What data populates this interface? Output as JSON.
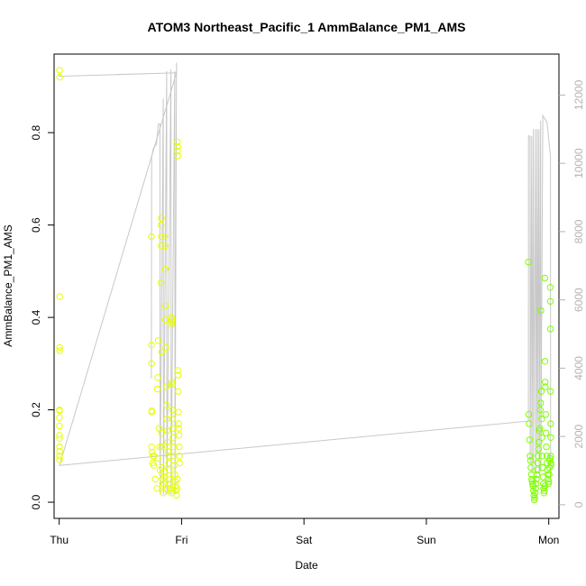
{
  "chart_data": {
    "type": "scatter",
    "title": "ATOM3 Northeast_Pacific_1 AmmBalance_PM1_AMS",
    "xlabel": "Date",
    "ylabel": "AmmBalance_PM1_AMS",
    "x_ticks": [
      "Thu",
      "Fri",
      "Sat",
      "Sun",
      "Mon"
    ],
    "x_tick_values": [
      "2017-10-05",
      "2017-10-06",
      "2017-10-07",
      "2017-10-08",
      "2017-10-09"
    ],
    "xlim": [
      "2017-10-04T23:00",
      "2017-10-09T02:00"
    ],
    "ylim": [
      -0.035,
      0.97
    ],
    "y_ticks": [
      0.0,
      0.2,
      0.4,
      0.6,
      0.8
    ],
    "y2lim": [
      -400,
      13200
    ],
    "y2_ticks": [
      0,
      2000,
      4000,
      6000,
      8000,
      10000,
      12000
    ],
    "series": [
      {
        "type": "scatter",
        "axis": "left",
        "marker": "open-circle",
        "points": [
          [
            "2017-10-05T00:05",
            0.935
          ],
          [
            "2017-10-05T00:06",
            0.92
          ],
          [
            "2017-10-05T00:07",
            0.445
          ],
          [
            "2017-10-05T00:05",
            0.335
          ],
          [
            "2017-10-05T00:06",
            0.328
          ],
          [
            "2017-10-05T00:04",
            0.2
          ],
          [
            "2017-10-05T00:05",
            0.198
          ],
          [
            "2017-10-05T00:03",
            0.183
          ],
          [
            "2017-10-05T00:04",
            0.165
          ],
          [
            "2017-10-05T00:03",
            0.145
          ],
          [
            "2017-10-05T00:05",
            0.138
          ],
          [
            "2017-10-05T00:04",
            0.12
          ],
          [
            "2017-10-05T00:06",
            0.11
          ],
          [
            "2017-10-05T00:03",
            0.1
          ],
          [
            "2017-10-05T00:05",
            0.092
          ],
          [
            "2017-10-05T18:05",
            0.575
          ],
          [
            "2017-10-05T18:06",
            0.34
          ],
          [
            "2017-10-05T18:07",
            0.3
          ],
          [
            "2017-10-05T18:09",
            0.198
          ],
          [
            "2017-10-05T18:10",
            0.195
          ],
          [
            "2017-10-05T18:08",
            0.12
          ],
          [
            "2017-10-05T18:12",
            0.108
          ],
          [
            "2017-10-05T18:24",
            0.1
          ],
          [
            "2017-10-05T18:36",
            0.1
          ],
          [
            "2017-10-05T18:20",
            0.085
          ],
          [
            "2017-10-05T18:31",
            0.08
          ],
          [
            "2017-10-05T18:50",
            0.05
          ],
          [
            "2017-10-05T19:10",
            0.03
          ],
          [
            "2017-10-05T19:20",
            0.095
          ],
          [
            "2017-10-05T19:25",
            0.35
          ],
          [
            "2017-10-05T19:20",
            0.27
          ],
          [
            "2017-10-05T19:15",
            0.245
          ],
          [
            "2017-10-05T19:35",
            0.16
          ],
          [
            "2017-10-05T19:41",
            0.12
          ],
          [
            "2017-10-05T19:46",
            0.07
          ],
          [
            "2017-10-05T20:02",
            0.615
          ],
          [
            "2017-10-05T20:00",
            0.6
          ],
          [
            "2017-10-05T20:01",
            0.575
          ],
          [
            "2017-10-05T20:00",
            0.555
          ],
          [
            "2017-10-05T19:59",
            0.475
          ],
          [
            "2017-10-05T20:05",
            0.325
          ],
          [
            "2017-10-05T20:04",
            0.15
          ],
          [
            "2017-10-05T20:08",
            0.12
          ],
          [
            "2017-10-05T20:13",
            0.075
          ],
          [
            "2017-10-05T20:15",
            0.05
          ],
          [
            "2017-10-05T20:20",
            0.035
          ],
          [
            "2017-10-05T20:25",
            0.02
          ],
          [
            "2017-10-05T20:30",
            0.04
          ],
          [
            "2017-10-05T20:35",
            0.055
          ],
          [
            "2017-10-05T20:40",
            0.065
          ],
          [
            "2017-10-05T20:43",
            0.575
          ],
          [
            "2017-10-05T20:45",
            0.555
          ],
          [
            "2017-10-05T20:48",
            0.505
          ],
          [
            "2017-10-05T20:52",
            0.425
          ],
          [
            "2017-10-05T20:50",
            0.395
          ],
          [
            "2017-10-05T20:55",
            0.335
          ],
          [
            "2017-10-05T21:00",
            0.25
          ],
          [
            "2017-10-05T21:02",
            0.21
          ],
          [
            "2017-10-05T21:06",
            0.18
          ],
          [
            "2017-10-05T21:10",
            0.155
          ],
          [
            "2017-10-05T21:15",
            0.13
          ],
          [
            "2017-10-05T21:20",
            0.11
          ],
          [
            "2017-10-05T21:25",
            0.1
          ],
          [
            "2017-10-05T21:30",
            0.085
          ],
          [
            "2017-10-05T21:35",
            0.07
          ],
          [
            "2017-10-05T21:40",
            0.05
          ],
          [
            "2017-10-05T21:45",
            0.04
          ],
          [
            "2017-10-05T21:50",
            0.03
          ],
          [
            "2017-10-05T21:55",
            0.025
          ],
          [
            "2017-10-05T22:00",
            0.02
          ],
          [
            "2017-10-05T22:02",
            0.4
          ],
          [
            "2017-10-05T22:04",
            0.395
          ],
          [
            "2017-10-05T22:01",
            0.385
          ],
          [
            "2017-10-05T22:03",
            0.39
          ],
          [
            "2017-10-05T22:06",
            0.26
          ],
          [
            "2017-10-05T22:08",
            0.255
          ],
          [
            "2017-10-05T22:10",
            0.2
          ],
          [
            "2017-10-05T22:12",
            0.18
          ],
          [
            "2017-10-05T22:16",
            0.16
          ],
          [
            "2017-10-05T22:20",
            0.14
          ],
          [
            "2017-10-05T22:25",
            0.12
          ],
          [
            "2017-10-05T22:30",
            0.1
          ],
          [
            "2017-10-05T22:35",
            0.08
          ],
          [
            "2017-10-05T22:40",
            0.06
          ],
          [
            "2017-10-05T22:45",
            0.045
          ],
          [
            "2017-10-05T22:50",
            0.035
          ],
          [
            "2017-10-05T22:55",
            0.025
          ],
          [
            "2017-10-05T23:00",
            0.015
          ],
          [
            "2017-10-05T23:05",
            0.03
          ],
          [
            "2017-10-05T23:10",
            0.05
          ],
          [
            "2017-10-05T23:12",
            0.78
          ],
          [
            "2017-10-05T23:14",
            0.77
          ],
          [
            "2017-10-05T23:13",
            0.76
          ],
          [
            "2017-10-05T23:16",
            0.75
          ],
          [
            "2017-10-05T23:15",
            0.285
          ],
          [
            "2017-10-05T23:18",
            0.275
          ],
          [
            "2017-10-05T23:22",
            0.24
          ],
          [
            "2017-10-05T23:24",
            0.195
          ],
          [
            "2017-10-05T23:26",
            0.17
          ],
          [
            "2017-10-05T23:28",
            0.16
          ],
          [
            "2017-10-05T23:30",
            0.145
          ],
          [
            "2017-10-05T23:32",
            0.12
          ],
          [
            "2017-10-05T23:34",
            0.1
          ],
          [
            "2017-10-05T23:36",
            0.085
          ],
          [
            "2017-10-08T20:00",
            0.52
          ],
          [
            "2017-10-08T20:05",
            0.19
          ],
          [
            "2017-10-08T20:10",
            0.17
          ],
          [
            "2017-10-08T20:15",
            0.135
          ],
          [
            "2017-10-08T20:20",
            0.1
          ],
          [
            "2017-10-08T20:25",
            0.09
          ],
          [
            "2017-10-08T20:30",
            0.075
          ],
          [
            "2017-10-08T20:35",
            0.06
          ],
          [
            "2017-10-08T20:40",
            0.05
          ],
          [
            "2017-10-08T20:45",
            0.045
          ],
          [
            "2017-10-08T20:50",
            0.04
          ],
          [
            "2017-10-08T20:55",
            0.035
          ],
          [
            "2017-10-08T21:00",
            0.025
          ],
          [
            "2017-10-08T21:05",
            0.015
          ],
          [
            "2017-10-08T21:10",
            0.005
          ],
          [
            "2017-10-08T21:15",
            0.01
          ],
          [
            "2017-10-08T21:20",
            0.02
          ],
          [
            "2017-10-08T21:25",
            0.03
          ],
          [
            "2017-10-08T21:30",
            0.04
          ],
          [
            "2017-10-08T21:35",
            0.05
          ],
          [
            "2017-10-08T21:40",
            0.06
          ],
          [
            "2017-10-08T21:45",
            0.07
          ],
          [
            "2017-10-08T21:50",
            0.085
          ],
          [
            "2017-10-08T21:55",
            0.1
          ],
          [
            "2017-10-08T22:00",
            0.115
          ],
          [
            "2017-10-08T22:05",
            0.13
          ],
          [
            "2017-10-08T22:10",
            0.155
          ],
          [
            "2017-10-08T22:15",
            0.16
          ],
          [
            "2017-10-08T22:20",
            0.2
          ],
          [
            "2017-10-08T22:25",
            0.215
          ],
          [
            "2017-10-08T22:28",
            0.415
          ],
          [
            "2017-10-08T22:32",
            0.24
          ],
          [
            "2017-10-08T22:36",
            0.18
          ],
          [
            "2017-10-08T22:40",
            0.14
          ],
          [
            "2017-10-08T22:44",
            0.1
          ],
          [
            "2017-10-08T22:48",
            0.075
          ],
          [
            "2017-10-08T22:52",
            0.055
          ],
          [
            "2017-10-08T22:56",
            0.04
          ],
          [
            "2017-10-08T23:00",
            0.03
          ],
          [
            "2017-10-08T23:04",
            0.02
          ],
          [
            "2017-10-08T23:08",
            0.025
          ],
          [
            "2017-10-08T23:12",
            0.035
          ],
          [
            "2017-10-08T23:14",
            0.485
          ],
          [
            "2017-10-08T23:16",
            0.305
          ],
          [
            "2017-10-08T23:18",
            0.26
          ],
          [
            "2017-10-08T23:20",
            0.25
          ],
          [
            "2017-10-08T23:24",
            0.19
          ],
          [
            "2017-10-08T23:28",
            0.15
          ],
          [
            "2017-10-08T23:32",
            0.12
          ],
          [
            "2017-10-08T23:36",
            0.1
          ],
          [
            "2017-10-08T23:40",
            0.085
          ],
          [
            "2017-10-08T23:44",
            0.07
          ],
          [
            "2017-10-08T23:48",
            0.06
          ],
          [
            "2017-10-08T23:52",
            0.05
          ],
          [
            "2017-10-08T23:56",
            0.04
          ],
          [
            "2017-10-09T00:00",
            0.045
          ],
          [
            "2017-10-09T00:04",
            0.06
          ],
          [
            "2017-10-09T00:08",
            0.075
          ],
          [
            "2017-10-09T00:12",
            0.09
          ],
          [
            "2017-10-09T00:16",
            0.095
          ],
          [
            "2017-10-09T00:18",
            0.465
          ],
          [
            "2017-10-09T00:19",
            0.435
          ],
          [
            "2017-10-09T00:20",
            0.375
          ],
          [
            "2017-10-09T00:21",
            0.24
          ],
          [
            "2017-10-09T00:22",
            0.17
          ],
          [
            "2017-10-09T00:23",
            0.14
          ],
          [
            "2017-10-09T00:24",
            0.1
          ],
          [
            "2017-10-09T00:25",
            0.085
          ],
          [
            "2017-10-09T00:26",
            0.08
          ]
        ]
      },
      {
        "type": "line",
        "axis": "right",
        "color": "#c8c8c8",
        "points": [
          [
            "2017-10-05T00:02",
            12600
          ],
          [
            "2017-10-05T00:03",
            12550
          ],
          [
            "2017-10-05T23:00",
            12650
          ],
          [
            "2017-10-05T00:04",
            1150
          ],
          [
            "2017-10-08T20:00",
            2450
          ],
          [
            "2017-10-08T20:01",
            10800
          ],
          [
            "2017-10-08T20:20",
            10800
          ],
          [
            "2017-10-08T20:22",
            1200
          ],
          [
            "2017-10-08T20:40",
            10800
          ],
          [
            "2017-10-08T20:42",
            900
          ],
          [
            "2017-10-08T21:00",
            11000
          ],
          [
            "2017-10-08T21:02",
            1200
          ],
          [
            "2017-10-08T21:25",
            11000
          ],
          [
            "2017-10-08T21:27",
            700
          ],
          [
            "2017-10-08T21:45",
            11000
          ],
          [
            "2017-10-08T21:47",
            1500
          ],
          [
            "2017-10-08T22:05",
            11000
          ],
          [
            "2017-10-08T22:07",
            900
          ],
          [
            "2017-10-08T22:25",
            11250
          ],
          [
            "2017-10-08T22:27",
            1000
          ],
          [
            "2017-10-08T22:50",
            11400
          ],
          [
            "2017-10-08T23:40",
            11200
          ],
          [
            "2017-10-09T00:20",
            10200
          ],
          [
            "2017-10-09T00:22",
            800
          ]
        ],
        "extra_segments": [
          [
            [
              "2017-10-05T18:05",
              3700
            ],
            [
              "2017-10-05T18:08",
              10200
            ],
            [
              "2017-10-05T18:30",
              10450
            ],
            [
              "2017-10-05T19:05",
              10550
            ],
            [
              "2017-10-05T19:25",
              11150
            ],
            [
              "2017-10-05T19:45",
              11150
            ],
            [
              "2017-10-05T19:47",
              300
            ],
            [
              "2017-10-05T20:25",
              11900
            ],
            [
              "2017-10-05T20:27",
              300
            ],
            [
              "2017-10-05T21:05",
              12700
            ],
            [
              "2017-10-05T21:07",
              300
            ],
            [
              "2017-10-05T21:55",
              12750
            ],
            [
              "2017-10-05T21:57",
              300
            ],
            [
              "2017-10-05T22:40",
              12700
            ],
            [
              "2017-10-05T22:42",
              300
            ],
            [
              "2017-10-05T23:00",
              12950
            ],
            [
              "2017-10-05T23:02",
              12700
            ]
          ]
        ]
      }
    ]
  },
  "colors": {
    "line": "#c8c8c8",
    "right_axis": "#b3b3b3",
    "point_early": "#e6ff00",
    "point_late": "#7fff00"
  }
}
